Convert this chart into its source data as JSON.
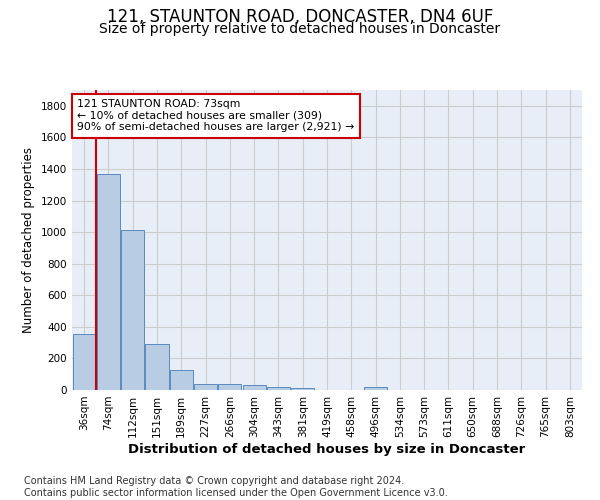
{
  "title": "121, STAUNTON ROAD, DONCASTER, DN4 6UF",
  "subtitle": "Size of property relative to detached houses in Doncaster",
  "xlabel": "Distribution of detached houses by size in Doncaster",
  "ylabel": "Number of detached properties",
  "bar_labels": [
    "36sqm",
    "74sqm",
    "112sqm",
    "151sqm",
    "189sqm",
    "227sqm",
    "266sqm",
    "304sqm",
    "343sqm",
    "381sqm",
    "419sqm",
    "458sqm",
    "496sqm",
    "534sqm",
    "573sqm",
    "611sqm",
    "650sqm",
    "688sqm",
    "726sqm",
    "765sqm",
    "803sqm"
  ],
  "bar_values": [
    355,
    1370,
    1015,
    290,
    125,
    40,
    35,
    30,
    20,
    15,
    0,
    0,
    20,
    0,
    0,
    0,
    0,
    0,
    0,
    0,
    0
  ],
  "bar_color": "#b8cce4",
  "bar_edge_color": "#5a8abf",
  "vline_color": "#cc0000",
  "annotation_text": "121 STAUNTON ROAD: 73sqm\n← 10% of detached houses are smaller (309)\n90% of semi-detached houses are larger (2,921) →",
  "annotation_box_color": "#cc0000",
  "ylim": [
    0,
    1900
  ],
  "yticks": [
    0,
    200,
    400,
    600,
    800,
    1000,
    1200,
    1400,
    1600,
    1800
  ],
  "grid_color": "#cccccc",
  "bg_color": "#e8eef7",
  "footer_line1": "Contains HM Land Registry data © Crown copyright and database right 2024.",
  "footer_line2": "Contains public sector information licensed under the Open Government Licence v3.0.",
  "title_fontsize": 12,
  "subtitle_fontsize": 10,
  "xlabel_fontsize": 9.5,
  "ylabel_fontsize": 8.5,
  "tick_fontsize": 7.5,
  "footer_fontsize": 7
}
